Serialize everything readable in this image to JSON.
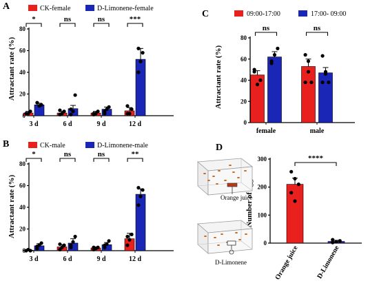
{
  "panels": {
    "A": {
      "letter": "A",
      "ylabel": "Attractant rate (%)",
      "legend": [
        "CK-female",
        "D-Limonene-female"
      ],
      "colors": [
        "#e8201e",
        "#1a26b5"
      ],
      "chart_data": {
        "type": "bar",
        "title": "",
        "categories": [
          "3 d",
          "6 d",
          "9 d",
          "12 d"
        ],
        "series": [
          {
            "name": "CK-female",
            "values": [
              2.5,
              2.5,
              2.5,
              4.5
            ],
            "errors": [
              1.5,
              1.5,
              1.5,
              3
            ]
          },
          {
            "name": "D-Limonene-female",
            "values": [
              10,
              6.5,
              6,
              52
            ],
            "errors": [
              1.5,
              3,
              2,
              10
            ]
          }
        ],
        "points": [
          [
            [
              2,
              2,
              4
            ],
            [
              12,
              9,
              10
            ]
          ],
          [
            [
              1,
              2,
              4,
              5
            ],
            [
              1,
              4,
              19,
              6
            ]
          ],
          [
            [
              1,
              2,
              4,
              2
            ],
            [
              4,
              6,
              8,
              2
            ]
          ],
          [
            [
              2,
              2,
              6,
              9
            ],
            [
              40,
              50,
              58,
              62
            ]
          ]
        ],
        "significance": [
          "*",
          "ns",
          "ns",
          "***"
        ],
        "ylim": [
          0,
          80
        ],
        "yticks": [
          "0",
          "20",
          "40",
          "60",
          "80"
        ]
      }
    },
    "B": {
      "letter": "B",
      "ylabel": "Attractant rate (%)",
      "legend": [
        "CK-male",
        "D-Limonene-male"
      ],
      "colors": [
        "#e8201e",
        "#1a26b5"
      ],
      "chart_data": {
        "type": "bar",
        "title": "",
        "categories": [
          "3 d",
          "6 d",
          "9 d",
          "12 d"
        ],
        "series": [
          {
            "name": "CK-male",
            "values": [
              0.5,
              3.5,
              2.5,
              11
            ],
            "errors": [
              0.5,
              2,
              1,
              5
            ]
          },
          {
            "name": "D-Limonene-male",
            "values": [
              4.5,
              7,
              5.5,
              52
            ],
            "errors": [
              2,
              4,
              2,
              5
            ]
          }
        ],
        "points": [
          [
            [
              0,
              1,
              0
            ],
            [
              2,
              5,
              7,
              4
            ]
          ],
          [
            [
              1,
              3,
              5,
              6
            ],
            [
              3,
              8,
              13,
              5
            ]
          ],
          [
            [
              1,
              2,
              3,
              3
            ],
            [
              5,
              6,
              9,
              3
            ]
          ],
          [
            [
              5,
              10,
              15,
              13
            ],
            [
              42,
              50,
              56,
              58
            ]
          ]
        ],
        "significance": [
          "*",
          "ns",
          "ns",
          "**"
        ],
        "ylim": [
          0,
          80
        ],
        "yticks": [
          "0",
          "20",
          "40",
          "60",
          "80"
        ]
      }
    },
    "C": {
      "letter": "C",
      "ylabel": "Attractant rate (%)",
      "legend": [
        "09:00-17:00",
        "17:00- 09:00"
      ],
      "colors": [
        "#e8201e",
        "#1a26b5"
      ],
      "chart_data": {
        "type": "bar",
        "title": "",
        "categories": [
          "female",
          "male"
        ],
        "series": [
          {
            "name": "09:00-17:00",
            "values": [
              45,
              53
            ],
            "errors": [
              4,
              7
            ]
          },
          {
            "name": "17:00- 09:00",
            "values": [
              62,
              47
            ],
            "errors": [
              5,
              5
            ]
          }
        ],
        "points": [
          [
            [
              48,
              36,
              40,
              50
            ],
            [
              58,
              64,
              70,
              56
            ]
          ],
          [
            [
              64,
              58,
              38,
              38,
              48
            ],
            [
              63,
              46,
              38,
              38,
              48
            ]
          ]
        ],
        "significance": [
          "ns",
          "ns"
        ],
        "ylim": [
          0,
          80
        ],
        "yticks": [
          "0",
          "20",
          "40",
          "60",
          "80"
        ]
      }
    },
    "D": {
      "letter": "D",
      "ylabel": "Number of eggs",
      "colors": [
        "#e8201e",
        "#1a26b5"
      ],
      "diagram_labels": [
        "Orange juice",
        "D-Limonene"
      ],
      "chart_data": {
        "type": "bar",
        "title": "",
        "categories": [
          "Orange juice",
          "D-Limonene"
        ],
        "series": [
          {
            "name": "",
            "values": [
              210,
              6
            ],
            "errors": [
              22,
              4
            ]
          }
        ],
        "points": [
          [
            [
              255,
              230,
              210,
              180,
              150
            ],
            [
              2,
              5,
              8,
              12
            ]
          ]
        ],
        "significance": [
          "****"
        ],
        "ylim": [
          0,
          300
        ],
        "yticks": [
          "0",
          "100",
          "200",
          "300"
        ]
      }
    }
  }
}
